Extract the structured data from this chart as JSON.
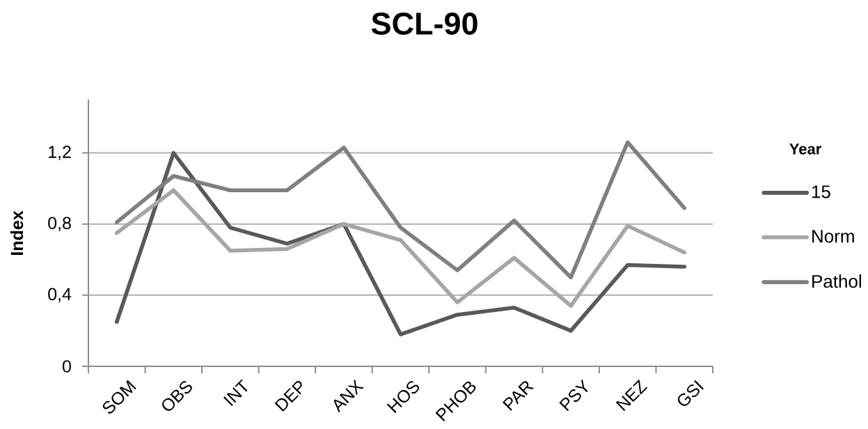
{
  "chart_data": {
    "type": "line",
    "title": "SCL-90",
    "ylabel": "Index",
    "legend_title": "Year",
    "categories": [
      "SOM",
      "OBS",
      "INT",
      "DEP",
      "ANX",
      "HOS",
      "PHOB",
      "PAR",
      "PSY",
      "NEZ",
      "GSI"
    ],
    "series": [
      {
        "name": "15",
        "color": "#595959",
        "values": [
          0.25,
          1.2,
          0.78,
          0.69,
          0.8,
          0.18,
          0.29,
          0.33,
          0.2,
          0.57,
          0.56
        ]
      },
      {
        "name": "Norm",
        "color": "#a6a6a6",
        "values": [
          0.75,
          0.99,
          0.65,
          0.66,
          0.8,
          0.71,
          0.36,
          0.61,
          0.34,
          0.79,
          0.64
        ]
      },
      {
        "name": "Pathol",
        "color": "#7f7f7f",
        "values": [
          0.81,
          1.07,
          0.99,
          0.99,
          1.23,
          0.78,
          0.54,
          0.82,
          0.5,
          1.26,
          0.89
        ]
      }
    ],
    "ylim": [
      0,
      1.5
    ],
    "yticks": [
      0,
      {
        "value": 0.4,
        "label": "0,4"
      },
      {
        "value": 0.8,
        "label": "0,8"
      },
      {
        "value": 1.2,
        "label": "1,2"
      }
    ],
    "grid": "y",
    "legend": "right",
    "marker": "none",
    "line_style": "solid"
  }
}
